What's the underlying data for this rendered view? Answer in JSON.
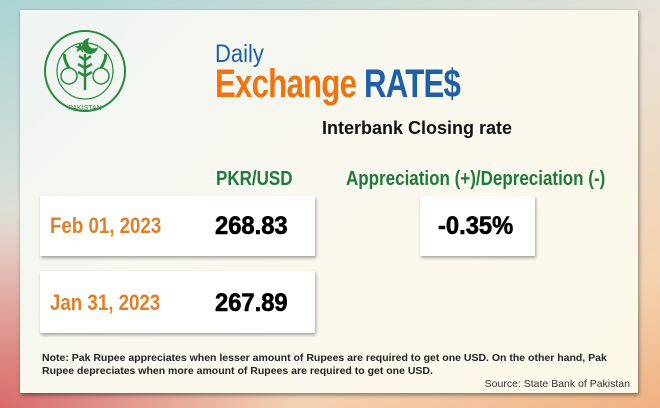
{
  "logo": {
    "text_top": "STATE BANK",
    "text_bottom": "OF PAKISTAN",
    "color": "#2a8a3c"
  },
  "header": {
    "daily": "Daily",
    "exchange": "Exchange",
    "rates": "RATE$",
    "subtitle": "Interbank Closing rate"
  },
  "columns": {
    "rate": "PKR/USD",
    "change": "Appreciation (+)/Depreciation (-)"
  },
  "rows": [
    {
      "date": "Feb 01, 2023",
      "rate": "268.83"
    },
    {
      "date": "Jan 31, 2023",
      "rate": "267.89"
    }
  ],
  "change": "-0.35%",
  "note": "Note: Pak Rupee appreciates when lesser amount of Rupees are required to get one USD.  On the other hand, Pak Rupee depreciates when more amount of Rupees are required to get one USD.",
  "source": "Source: State Bank of Pakistan",
  "colors": {
    "orange": "#ee7410",
    "blue": "#1f5ea8",
    "green": "#1e7a3c"
  }
}
